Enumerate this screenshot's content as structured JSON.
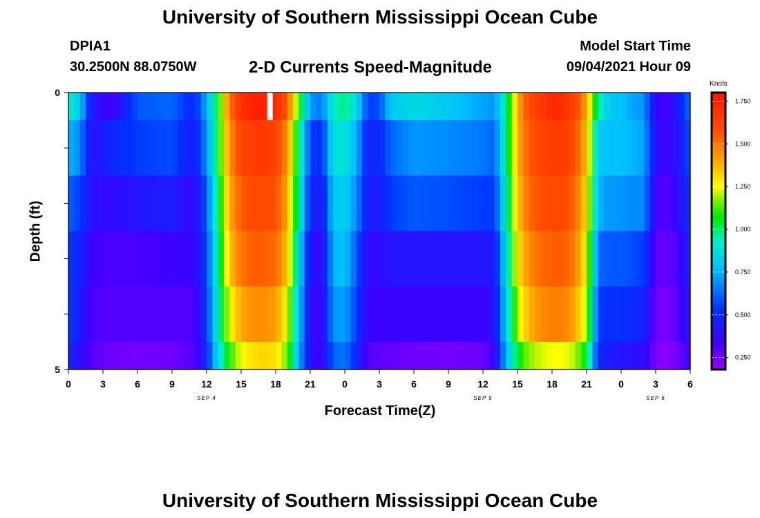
{
  "header": {
    "title": "University of Southern Mississippi Ocean Cube",
    "station_id": "DPIA1",
    "coordinates": "30.2500N  88.0750W",
    "subtitle": "2-D Currents Speed-Magnitude",
    "model_start_label": "Model Start Time",
    "model_start_value": "09/04/2021 Hour 09"
  },
  "footer": {
    "title": "University of Southern Mississippi Ocean Cube"
  },
  "chart_data": {
    "type": "heatmap",
    "title": "2-D Currents Speed-Magnitude",
    "xlabel": "Forecast Time(Z)",
    "ylabel": "Depth (ft)",
    "xlim": [
      0,
      54
    ],
    "ylim": [
      0,
      5
    ],
    "x_ticks": [
      0,
      3,
      6,
      9,
      12,
      15,
      18,
      21,
      24,
      27,
      30,
      33,
      36,
      39,
      42,
      45,
      48,
      51,
      54
    ],
    "x_tick_labels": [
      "0",
      "3",
      "6",
      "9",
      "12",
      "15",
      "18",
      "21",
      "0",
      "3",
      "6",
      "9",
      "12",
      "15",
      "18",
      "21",
      "0",
      "3",
      "6"
    ],
    "y_tick_labels": [
      "0",
      "5"
    ],
    "date_labels": [
      {
        "x": 12,
        "label": "SEP 4"
      },
      {
        "x": 36,
        "label": "SEP 5"
      },
      {
        "x": 51,
        "label": "SEP 6"
      }
    ],
    "colorbar": {
      "unit": "Knots",
      "min": 0.18,
      "max": 1.8,
      "ticks": [
        0.25,
        0.5,
        0.75,
        1.0,
        1.25,
        1.5,
        1.75
      ],
      "tick_labels": [
        "0.250",
        "0.500",
        "0.750",
        "1.000",
        "1.250",
        "1.500",
        "1.750"
      ]
    },
    "depth_layers": [
      "0-0.5",
      "0.5-1.5",
      "1.5-2.5",
      "2.5-3.5",
      "3.5-4.5",
      "4.5-5"
    ],
    "profiles": {
      "hours": [
        0,
        1,
        2,
        3,
        4,
        6,
        9,
        10,
        11,
        12,
        13,
        14,
        15,
        16,
        17,
        18,
        19,
        20,
        21,
        22,
        23,
        24,
        25,
        26,
        27,
        28,
        30,
        33,
        36,
        37,
        38,
        39,
        40,
        41,
        42,
        43,
        44,
        45,
        46,
        47,
        48,
        49,
        50,
        51,
        52,
        53,
        54
      ],
      "layers": [
        [
          0.92,
          0.8,
          0.45,
          0.35,
          0.35,
          0.6,
          0.62,
          0.55,
          0.5,
          0.75,
          1.05,
          1.5,
          1.7,
          1.75,
          1.75,
          1.72,
          1.55,
          1.1,
          0.7,
          0.65,
          0.92,
          0.98,
          0.85,
          0.55,
          0.58,
          0.8,
          0.85,
          0.8,
          0.72,
          0.7,
          0.95,
          1.4,
          1.6,
          1.65,
          1.72,
          1.7,
          1.62,
          1.4,
          0.95,
          0.8,
          0.78,
          0.72,
          0.7,
          0.35,
          0.33,
          0.45,
          0.65
        ],
        [
          0.75,
          0.68,
          0.4,
          0.45,
          0.5,
          0.55,
          0.58,
          0.5,
          0.45,
          0.7,
          1.05,
          1.45,
          1.62,
          1.65,
          1.66,
          1.62,
          1.45,
          1.0,
          0.55,
          0.52,
          0.88,
          0.88,
          0.75,
          0.48,
          0.5,
          0.62,
          0.7,
          0.68,
          0.65,
          0.62,
          0.95,
          1.4,
          1.55,
          1.62,
          1.65,
          1.65,
          1.58,
          1.35,
          0.8,
          0.78,
          0.78,
          0.75,
          0.72,
          0.38,
          0.35,
          0.42,
          0.6
        ],
        [
          0.62,
          0.55,
          0.4,
          0.38,
          0.38,
          0.42,
          0.45,
          0.4,
          0.38,
          0.62,
          1.0,
          1.4,
          1.55,
          1.6,
          1.6,
          1.58,
          1.4,
          0.95,
          0.48,
          0.45,
          0.8,
          0.82,
          0.68,
          0.45,
          0.45,
          0.55,
          0.6,
          0.58,
          0.55,
          0.55,
          0.9,
          1.35,
          1.52,
          1.58,
          1.6,
          1.6,
          1.52,
          1.3,
          0.75,
          0.7,
          0.7,
          0.68,
          0.68,
          0.32,
          0.3,
          0.38,
          0.55
        ],
        [
          0.55,
          0.48,
          0.35,
          0.32,
          0.32,
          0.32,
          0.35,
          0.35,
          0.35,
          0.58,
          0.95,
          1.35,
          1.5,
          1.55,
          1.55,
          1.52,
          1.35,
          0.85,
          0.4,
          0.38,
          0.75,
          0.78,
          0.6,
          0.38,
          0.38,
          0.42,
          0.42,
          0.42,
          0.42,
          0.45,
          0.85,
          1.3,
          1.45,
          1.52,
          1.55,
          1.55,
          1.48,
          1.25,
          0.62,
          0.6,
          0.6,
          0.58,
          0.55,
          0.28,
          0.27,
          0.32,
          0.5
        ],
        [
          0.55,
          0.45,
          0.32,
          0.3,
          0.3,
          0.3,
          0.3,
          0.3,
          0.32,
          0.55,
          0.92,
          1.25,
          1.4,
          1.45,
          1.45,
          1.42,
          1.25,
          0.8,
          0.38,
          0.36,
          0.7,
          0.72,
          0.55,
          0.35,
          0.35,
          0.35,
          0.35,
          0.35,
          0.35,
          0.4,
          0.82,
          1.2,
          1.38,
          1.45,
          1.48,
          1.48,
          1.4,
          1.18,
          0.55,
          0.52,
          0.52,
          0.5,
          0.48,
          0.25,
          0.23,
          0.3,
          0.45
        ],
        [
          0.48,
          0.4,
          0.3,
          0.26,
          0.25,
          0.24,
          0.25,
          0.28,
          0.3,
          0.5,
          0.85,
          1.1,
          1.25,
          1.3,
          1.32,
          1.3,
          1.15,
          0.75,
          0.38,
          0.35,
          0.62,
          0.65,
          0.5,
          0.3,
          0.28,
          0.27,
          0.25,
          0.24,
          0.26,
          0.35,
          0.75,
          1.05,
          1.18,
          1.22,
          1.25,
          1.25,
          1.2,
          1.05,
          0.5,
          0.45,
          0.42,
          0.4,
          0.38,
          0.22,
          0.2,
          0.26,
          0.35
        ]
      ],
      "max_marker_hour": 17.5
    }
  }
}
